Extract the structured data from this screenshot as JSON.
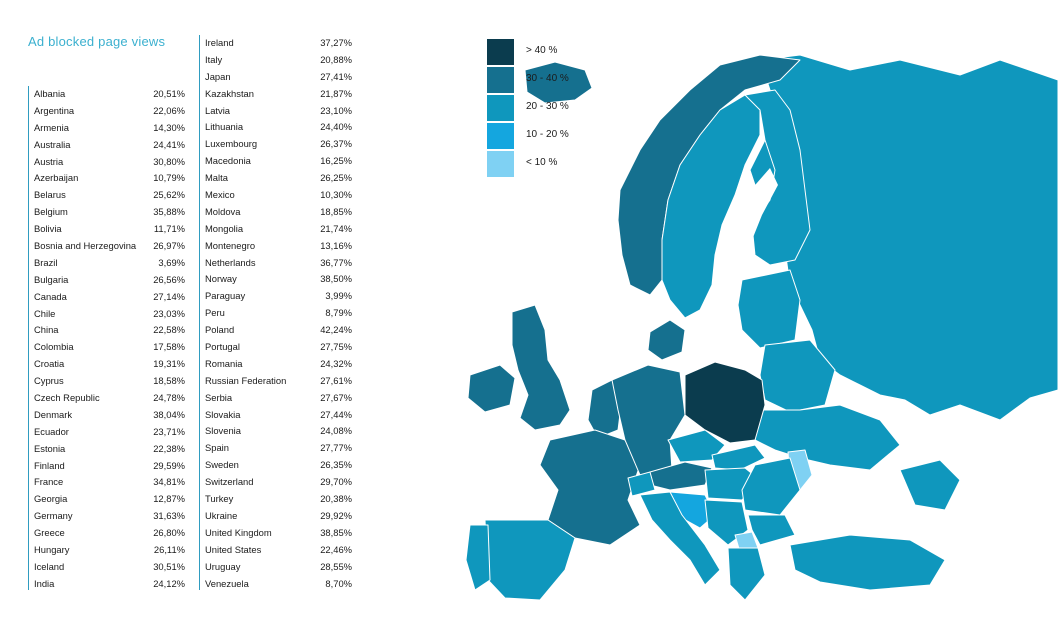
{
  "title": "Ad blocked page views",
  "countries_col1": [
    {
      "name": "Albania",
      "value": "20,51%"
    },
    {
      "name": "Argentina",
      "value": "22,06%"
    },
    {
      "name": "Armenia",
      "value": "14,30%"
    },
    {
      "name": "Australia",
      "value": "24,41%"
    },
    {
      "name": "Austria",
      "value": "30,80%"
    },
    {
      "name": "Azerbaijan",
      "value": "10,79%"
    },
    {
      "name": "Belarus",
      "value": "25,62%"
    },
    {
      "name": "Belgium",
      "value": "35,88%"
    },
    {
      "name": "Bolivia",
      "value": "11,71%"
    },
    {
      "name": "Bosnia and Herzegovina",
      "value": "26,97%"
    },
    {
      "name": "Brazil",
      "value": "3,69%"
    },
    {
      "name": "Bulgaria",
      "value": "26,56%"
    },
    {
      "name": "Canada",
      "value": "27,14%"
    },
    {
      "name": "Chile",
      "value": "23,03%"
    },
    {
      "name": "China",
      "value": "22,58%"
    },
    {
      "name": "Colombia",
      "value": "17,58%"
    },
    {
      "name": "Croatia",
      "value": "19,31%"
    },
    {
      "name": "Cyprus",
      "value": "18,58%"
    },
    {
      "name": "Czech Republic",
      "value": "24,78%"
    },
    {
      "name": "Denmark",
      "value": "38,04%"
    },
    {
      "name": "Ecuador",
      "value": "23,71%"
    },
    {
      "name": "Estonia",
      "value": "22,38%"
    },
    {
      "name": "Finland",
      "value": "29,59%"
    },
    {
      "name": "France",
      "value": "34,81%"
    },
    {
      "name": "Georgia",
      "value": "12,87%"
    },
    {
      "name": "Germany",
      "value": "31,63%"
    },
    {
      "name": "Greece",
      "value": "26,80%"
    },
    {
      "name": "Hungary",
      "value": "26,11%"
    },
    {
      "name": "Iceland",
      "value": "30,51%"
    },
    {
      "name": "India",
      "value": "24,12%"
    }
  ],
  "countries_col2": [
    {
      "name": "Ireland",
      "value": "37,27%"
    },
    {
      "name": "Italy",
      "value": "20,88%"
    },
    {
      "name": "Japan",
      "value": "27,41%"
    },
    {
      "name": "Kazakhstan",
      "value": "21,87%"
    },
    {
      "name": "Latvia",
      "value": "23,10%"
    },
    {
      "name": "Lithuania",
      "value": "24,40%"
    },
    {
      "name": "Luxembourg",
      "value": "26,37%"
    },
    {
      "name": "Macedonia",
      "value": "16,25%"
    },
    {
      "name": "Malta",
      "value": "26,25%"
    },
    {
      "name": "Mexico",
      "value": "10,30%"
    },
    {
      "name": "Moldova",
      "value": "18,85%"
    },
    {
      "name": "Mongolia",
      "value": "21,74%"
    },
    {
      "name": "Montenegro",
      "value": "13,16%"
    },
    {
      "name": "Netherlands",
      "value": "36,77%"
    },
    {
      "name": "Norway",
      "value": "38,50%"
    },
    {
      "name": "Paraguay",
      "value": "3,99%"
    },
    {
      "name": "Peru",
      "value": "8,79%"
    },
    {
      "name": "Poland",
      "value": "42,24%"
    },
    {
      "name": "Portugal",
      "value": "27,75%"
    },
    {
      "name": "Romania",
      "value": "24,32%"
    },
    {
      "name": "Russian Federation",
      "value": "27,61%"
    },
    {
      "name": "Serbia",
      "value": "27,67%"
    },
    {
      "name": "Slovakia",
      "value": "27,44%"
    },
    {
      "name": "Slovenia",
      "value": "24,08%"
    },
    {
      "name": "Spain",
      "value": "27,77%"
    },
    {
      "name": "Sweden",
      "value": "26,35%"
    },
    {
      "name": "Switzerland",
      "value": "29,70%"
    },
    {
      "name": "Turkey",
      "value": "20,38%"
    },
    {
      "name": "Ukraine",
      "value": "29,92%"
    },
    {
      "name": "United Kingdom",
      "value": "38,85%"
    },
    {
      "name": "United States",
      "value": "22,46%"
    },
    {
      "name": "Uruguay",
      "value": "28,55%"
    },
    {
      "name": "Venezuela",
      "value": "8,70%"
    }
  ],
  "legend": [
    {
      "label": "> 40 %",
      "color": "#0b3c4e"
    },
    {
      "label": "30 - 40 %",
      "color": "#15708f"
    },
    {
      "label": "20 - 30 %",
      "color": "#0f97bd"
    },
    {
      "label": "10 - 20 %",
      "color": "#14a6df"
    },
    {
      "label": "< 10 %",
      "color": "#7fd1f3"
    }
  ],
  "map_colors": {
    "over_40": "#0b3c4e",
    "from_30_to_40": "#15708f",
    "from_20_to_30": "#0f97bd",
    "from_10_to_20": "#14a6df",
    "under_10": "#7fd1f3",
    "border": "#ffffff"
  }
}
